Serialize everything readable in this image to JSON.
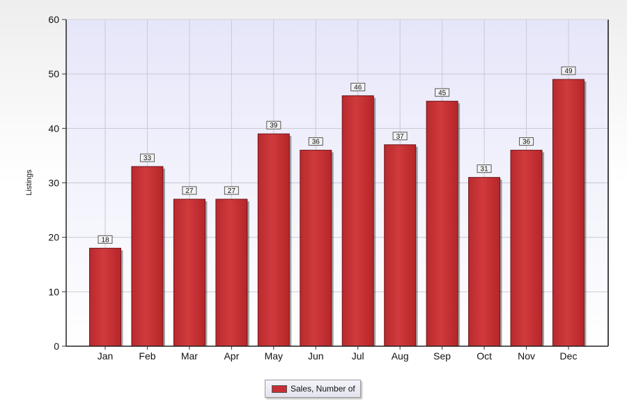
{
  "chart_data": {
    "type": "bar",
    "categories": [
      "Jan",
      "Feb",
      "Mar",
      "Apr",
      "May",
      "Jun",
      "Jul",
      "Aug",
      "Sep",
      "Oct",
      "Nov",
      "Dec"
    ],
    "series": [
      {
        "name": "Sales, Number of",
        "values": [
          18,
          33,
          27,
          27,
          39,
          36,
          46,
          37,
          45,
          31,
          36,
          49
        ]
      }
    ],
    "title": "",
    "xlabel": "",
    "ylabel": "Listings",
    "ylim": [
      0,
      60
    ],
    "yticks": [
      0,
      10,
      20,
      30,
      40,
      50,
      60
    ],
    "grid": true,
    "legend_position": "bottom-center",
    "data_labels": true,
    "colors": {
      "bar": "#c73034",
      "plot_background_top": "#e6e6fa",
      "plot_background_bottom": "#ffffff"
    }
  }
}
